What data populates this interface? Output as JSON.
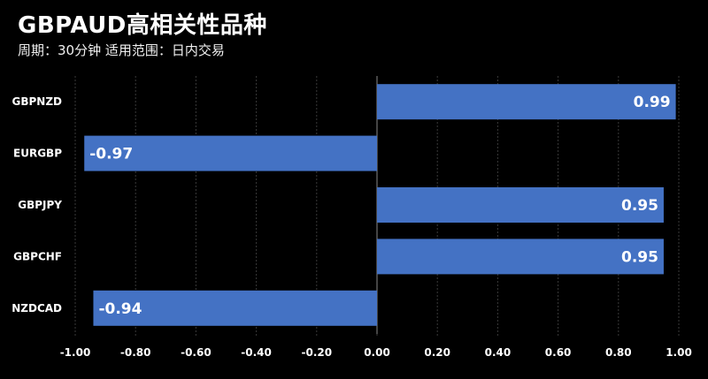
{
  "header": {
    "title": "GBPAUD高相关性品种",
    "subtitle": "周期：30分钟  适用范围：日内交易"
  },
  "colors": {
    "background": "#000000",
    "bar": "#4472c4",
    "grid": "#3a3a3a",
    "text": "#ffffff"
  },
  "chart_data": {
    "type": "bar",
    "orientation": "horizontal",
    "categories": [
      "GBPNZD",
      "EURGBP",
      "GBPJPY",
      "GBPCHF",
      "NZDCAD"
    ],
    "values": [
      0.99,
      -0.97,
      0.95,
      0.95,
      -0.94
    ],
    "value_labels": [
      "0.99",
      "-0.97",
      "0.95",
      "0.95",
      "-0.94"
    ],
    "xlim": [
      -1.0,
      1.0
    ],
    "xticks": [
      -1.0,
      -0.8,
      -0.6,
      -0.4,
      -0.2,
      0.0,
      0.2,
      0.4,
      0.6,
      0.8,
      1.0
    ],
    "xtick_labels": [
      "-1.00",
      "-0.80",
      "-0.60",
      "-0.40",
      "-0.20",
      "0.00",
      "0.20",
      "0.40",
      "0.60",
      "0.80",
      "1.00"
    ],
    "grid": true,
    "legend": false,
    "title": "GBPAUD高相关性品种",
    "xlabel": "",
    "ylabel": ""
  }
}
